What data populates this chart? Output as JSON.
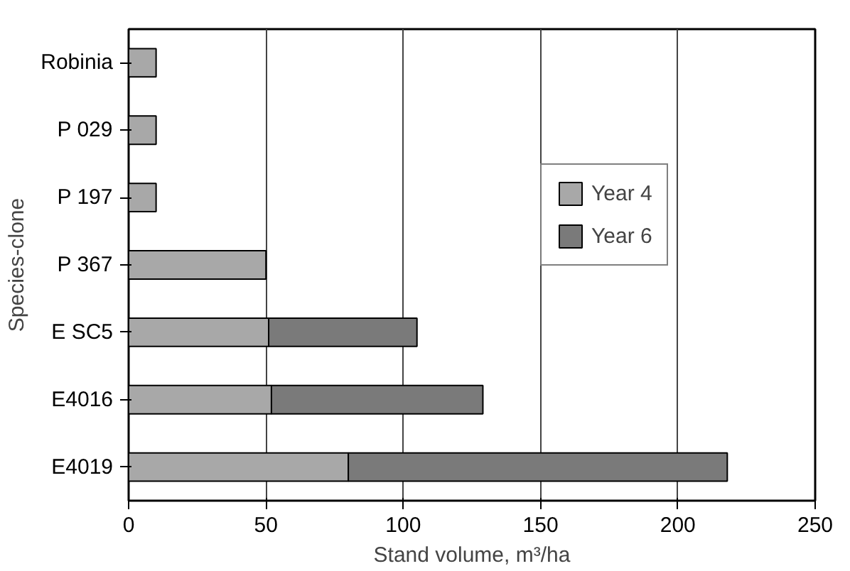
{
  "chart_data": {
    "type": "bar",
    "orientation": "horizontal",
    "stacked": true,
    "xlabel": "Stand volume, m³/ha",
    "ylabel": "Species-clone",
    "categories": [
      "Robinia",
      "P 029",
      "P 197",
      "P 367",
      "E SC5",
      "E4016",
      "E4019"
    ],
    "series": [
      {
        "name": "Year 4",
        "color": "#a8a8a8",
        "values": [
          10,
          10,
          10,
          50,
          51,
          52,
          80
        ]
      },
      {
        "name": "Year 6",
        "color": "#7a7a7a",
        "values": [
          null,
          null,
          null,
          null,
          54,
          77,
          138
        ]
      }
    ],
    "xlim": [
      0,
      250
    ],
    "xticks": [
      0,
      50,
      100,
      150,
      200,
      250
    ],
    "grid": "x",
    "legend": "right"
  }
}
